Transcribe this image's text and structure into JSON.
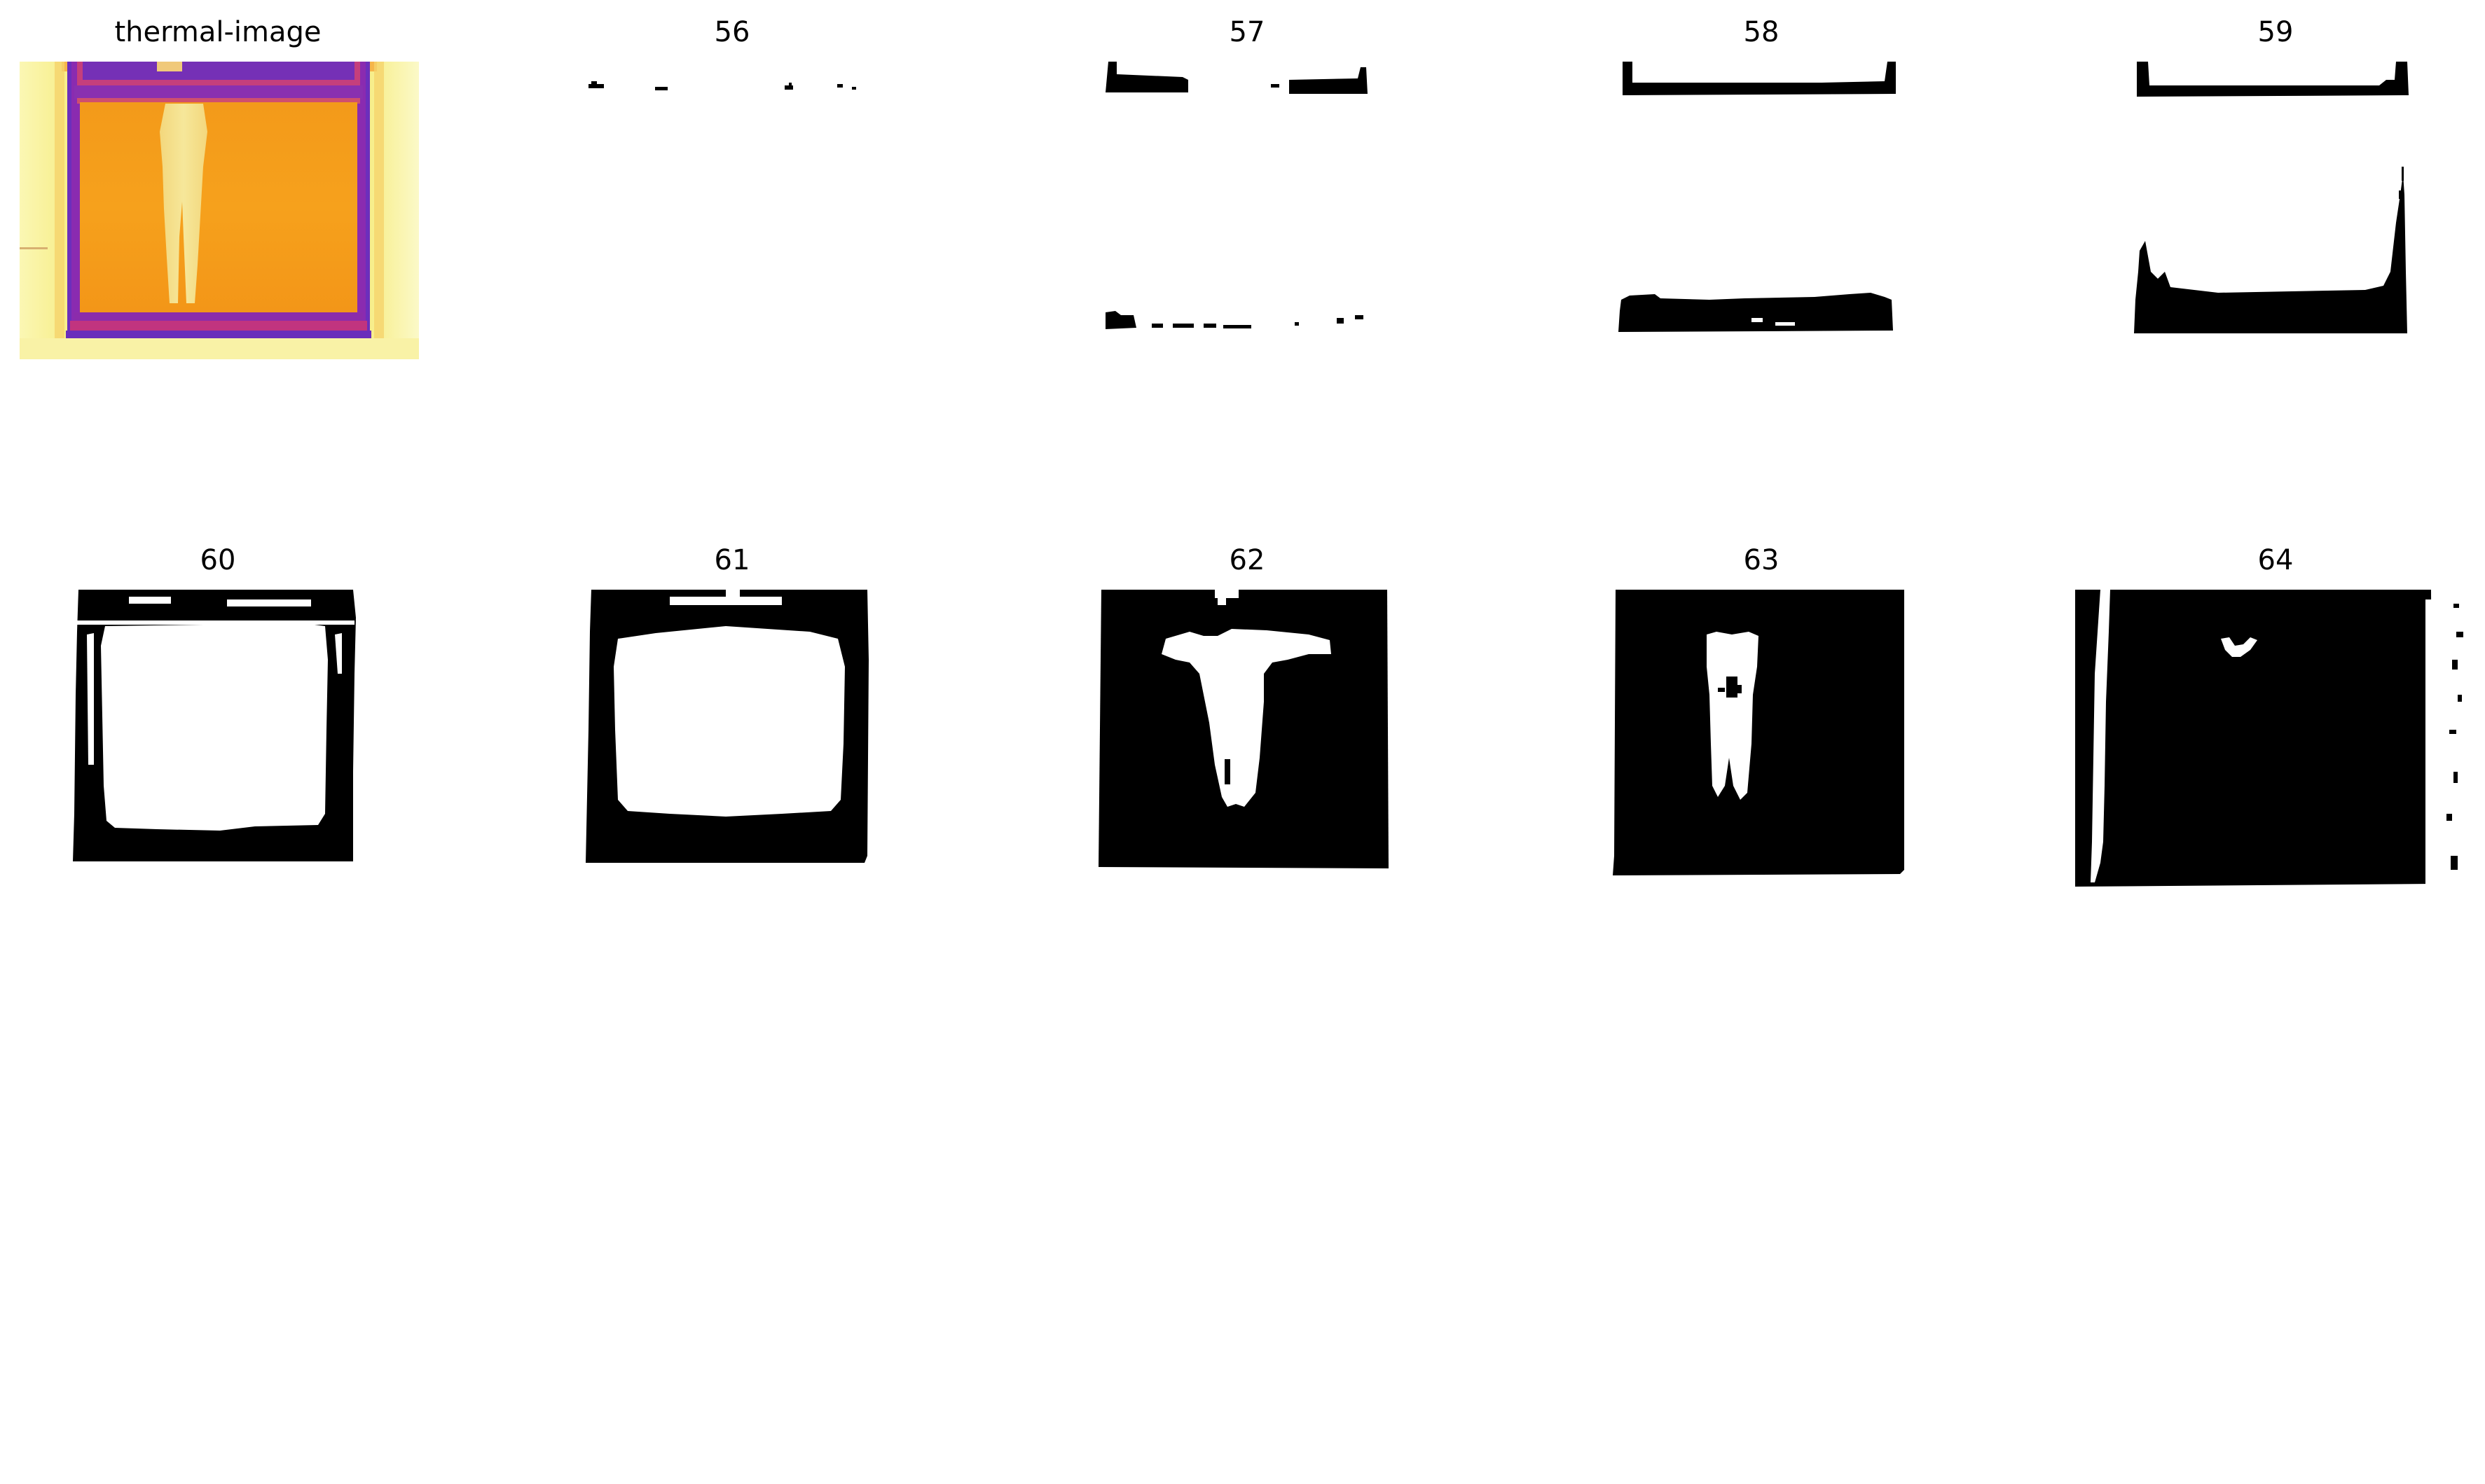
{
  "panels": [
    {
      "title": "thermal-image",
      "kind": "thermal"
    },
    {
      "title": "56",
      "kind": "mask"
    },
    {
      "title": "57",
      "kind": "mask"
    },
    {
      "title": "58",
      "kind": "mask"
    },
    {
      "title": "59",
      "kind": "mask"
    },
    {
      "title": "60",
      "kind": "mask"
    },
    {
      "title": "61",
      "kind": "mask"
    },
    {
      "title": "62",
      "kind": "mask"
    },
    {
      "title": "63",
      "kind": "mask"
    },
    {
      "title": "64",
      "kind": "mask"
    }
  ],
  "colors": {
    "mask_fg": "#000000",
    "mask_bg": "#ffffff",
    "thermal_hot": "#f9f29c",
    "thermal_warm": "#f6a21b",
    "thermal_mid": "#c9347f",
    "thermal_cool": "#6b2db8"
  }
}
